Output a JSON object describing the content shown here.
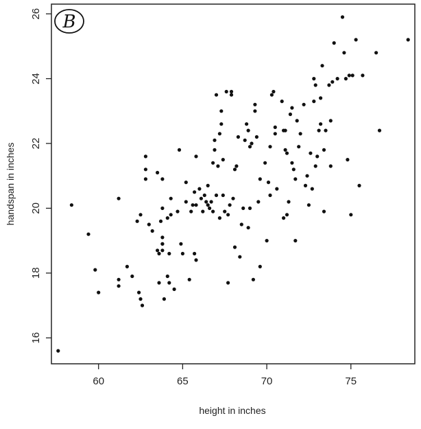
{
  "chart_data": {
    "type": "scatter",
    "title": "",
    "xlabel": "height in inches",
    "ylabel": "handspan in inches",
    "annotation": "B",
    "xlim": [
      57.2,
      78.8
    ],
    "ylim": [
      15.2,
      26.3
    ],
    "xticks": [
      "60",
      "65",
      "70",
      "75"
    ],
    "yticks": [
      "16",
      "18",
      "20",
      "22",
      "24",
      "26"
    ],
    "xtick_values": [
      60,
      65,
      70,
      75
    ],
    "ytick_values": [
      16,
      18,
      20,
      22,
      24,
      26
    ],
    "grid": false,
    "legend": "none",
    "point_color": "#111111",
    "points": [
      [
        57.6,
        15.6
      ],
      [
        58.4,
        20.1
      ],
      [
        59.4,
        19.2
      ],
      [
        59.8,
        18.1
      ],
      [
        60.0,
        17.4
      ],
      [
        61.2,
        17.8
      ],
      [
        61.2,
        17.6
      ],
      [
        61.2,
        20.3
      ],
      [
        61.7,
        18.2
      ],
      [
        62.0,
        17.9
      ],
      [
        62.4,
        17.4
      ],
      [
        62.5,
        17.2
      ],
      [
        62.6,
        17.0
      ],
      [
        62.3,
        19.6
      ],
      [
        62.5,
        19.8
      ],
      [
        62.8,
        20.9
      ],
      [
        62.8,
        21.2
      ],
      [
        62.8,
        21.6
      ],
      [
        63.0,
        19.5
      ],
      [
        63.2,
        19.3
      ],
      [
        63.5,
        21.1
      ],
      [
        63.5,
        18.7
      ],
      [
        63.6,
        18.6
      ],
      [
        63.6,
        17.7
      ],
      [
        63.7,
        19.6
      ],
      [
        63.8,
        18.9
      ],
      [
        63.8,
        18.9
      ],
      [
        63.8,
        19.1
      ],
      [
        63.8,
        18.7
      ],
      [
        63.8,
        20.0
      ],
      [
        63.8,
        20.9
      ],
      [
        63.9,
        17.2
      ],
      [
        64.1,
        19.7
      ],
      [
        64.1,
        17.9
      ],
      [
        64.2,
        17.7
      ],
      [
        64.2,
        18.6
      ],
      [
        64.3,
        20.3
      ],
      [
        64.3,
        19.8
      ],
      [
        64.5,
        17.5
      ],
      [
        64.7,
        19.9
      ],
      [
        64.8,
        21.8
      ],
      [
        64.9,
        18.9
      ],
      [
        65.0,
        18.6
      ],
      [
        65.2,
        20.2
      ],
      [
        65.2,
        20.8
      ],
      [
        65.4,
        17.8
      ],
      [
        65.5,
        19.9
      ],
      [
        65.6,
        20.1
      ],
      [
        65.7,
        20.5
      ],
      [
        65.7,
        18.6
      ],
      [
        65.8,
        18.4
      ],
      [
        65.8,
        20.1
      ],
      [
        65.8,
        21.6
      ],
      [
        66.0,
        20.6
      ],
      [
        66.1,
        20.3
      ],
      [
        66.2,
        19.9
      ],
      [
        66.3,
        20.4
      ],
      [
        66.4,
        20.2
      ],
      [
        66.5,
        20.7
      ],
      [
        66.5,
        20.1
      ],
      [
        66.6,
        20.0
      ],
      [
        66.7,
        20.2
      ],
      [
        66.8,
        19.9
      ],
      [
        66.8,
        21.4
      ],
      [
        66.9,
        21.8
      ],
      [
        66.9,
        22.1
      ],
      [
        67.0,
        23.5
      ],
      [
        67.0,
        20.4
      ],
      [
        67.1,
        21.3
      ],
      [
        67.2,
        19.7
      ],
      [
        67.2,
        22.3
      ],
      [
        67.3,
        23.0
      ],
      [
        67.3,
        22.6
      ],
      [
        67.4,
        21.5
      ],
      [
        67.4,
        20.4
      ],
      [
        67.5,
        19.9
      ],
      [
        67.6,
        23.6
      ],
      [
        67.7,
        19.8
      ],
      [
        67.7,
        17.7
      ],
      [
        67.8,
        20.1
      ],
      [
        67.9,
        23.5
      ],
      [
        67.9,
        23.6
      ],
      [
        68.0,
        20.3
      ],
      [
        68.1,
        21.2
      ],
      [
        68.1,
        18.8
      ],
      [
        68.2,
        21.3
      ],
      [
        68.3,
        22.2
      ],
      [
        68.4,
        18.5
      ],
      [
        68.5,
        19.5
      ],
      [
        68.6,
        20.0
      ],
      [
        68.7,
        22.1
      ],
      [
        68.8,
        22.6
      ],
      [
        68.9,
        22.4
      ],
      [
        68.9,
        19.4
      ],
      [
        69.0,
        21.9
      ],
      [
        69.0,
        20.0
      ],
      [
        69.1,
        22.0
      ],
      [
        69.2,
        17.8
      ],
      [
        69.3,
        23.2
      ],
      [
        69.3,
        23.0
      ],
      [
        69.4,
        22.2
      ],
      [
        69.5,
        20.2
      ],
      [
        69.6,
        18.2
      ],
      [
        69.6,
        20.9
      ],
      [
        69.9,
        21.4
      ],
      [
        70.0,
        19.0
      ],
      [
        70.1,
        20.8
      ],
      [
        70.2,
        21.9
      ],
      [
        70.2,
        20.4
      ],
      [
        70.3,
        23.5
      ],
      [
        70.4,
        23.6
      ],
      [
        70.5,
        22.5
      ],
      [
        70.5,
        22.3
      ],
      [
        70.6,
        20.6
      ],
      [
        70.9,
        23.3
      ],
      [
        71.0,
        19.7
      ],
      [
        71.0,
        22.4
      ],
      [
        71.1,
        21.8
      ],
      [
        71.1,
        22.4
      ],
      [
        71.2,
        21.7
      ],
      [
        71.2,
        19.8
      ],
      [
        71.3,
        20.2
      ],
      [
        71.4,
        22.9
      ],
      [
        71.5,
        23.1
      ],
      [
        71.5,
        21.4
      ],
      [
        71.6,
        21.2
      ],
      [
        71.7,
        20.9
      ],
      [
        71.7,
        19.0
      ],
      [
        71.8,
        22.7
      ],
      [
        71.9,
        21.9
      ],
      [
        72.0,
        22.3
      ],
      [
        72.2,
        23.2
      ],
      [
        72.3,
        20.7
      ],
      [
        72.4,
        21.0
      ],
      [
        72.5,
        20.1
      ],
      [
        72.6,
        21.7
      ],
      [
        72.7,
        20.6
      ],
      [
        72.8,
        23.3
      ],
      [
        72.8,
        24.0
      ],
      [
        72.9,
        23.8
      ],
      [
        72.9,
        21.3
      ],
      [
        73.0,
        21.6
      ],
      [
        73.1,
        22.4
      ],
      [
        73.2,
        22.6
      ],
      [
        73.2,
        23.4
      ],
      [
        73.3,
        24.4
      ],
      [
        73.4,
        21.8
      ],
      [
        73.4,
        19.9
      ],
      [
        73.5,
        22.4
      ],
      [
        73.7,
        23.8
      ],
      [
        73.8,
        22.7
      ],
      [
        73.8,
        21.3
      ],
      [
        73.9,
        23.9
      ],
      [
        74.0,
        25.1
      ],
      [
        74.2,
        24.0
      ],
      [
        74.5,
        25.9
      ],
      [
        74.6,
        24.8
      ],
      [
        74.7,
        24.0
      ],
      [
        74.8,
        21.5
      ],
      [
        74.9,
        24.1
      ],
      [
        75.0,
        19.8
      ],
      [
        75.1,
        24.1
      ],
      [
        75.3,
        25.2
      ],
      [
        75.5,
        20.7
      ],
      [
        75.7,
        24.1
      ],
      [
        76.5,
        24.8
      ],
      [
        76.7,
        22.4
      ],
      [
        78.4,
        25.2
      ]
    ]
  }
}
